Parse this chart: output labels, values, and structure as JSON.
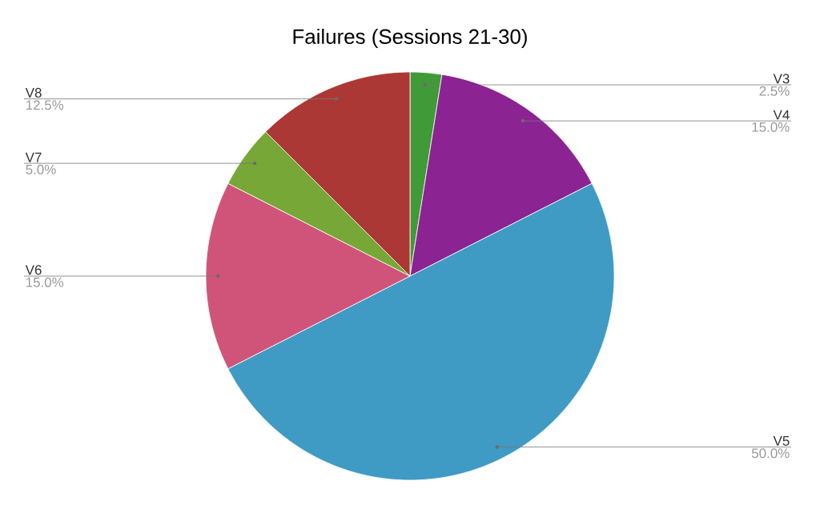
{
  "chart_data": {
    "type": "pie",
    "title": "Failures (Sessions 21-30)",
    "categories": [
      "V3",
      "V4",
      "V5",
      "V6",
      "V7",
      "V8"
    ],
    "values": [
      2.5,
      15.0,
      50.0,
      15.0,
      5.0,
      12.5
    ],
    "value_labels": [
      "2.5%",
      "15.0%",
      "50.0%",
      "15.0%",
      "5.0%",
      "12.5%"
    ],
    "colors": [
      "#3f9a37",
      "#8b2393",
      "#3f9ac4",
      "#d05479",
      "#77a737",
      "#ab3834"
    ]
  }
}
